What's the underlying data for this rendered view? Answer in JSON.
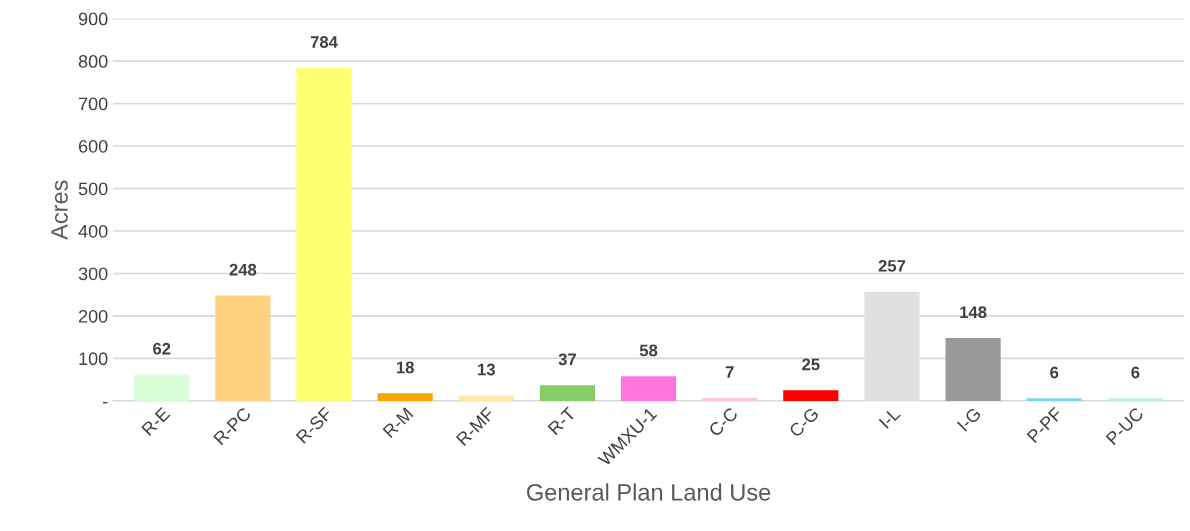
{
  "chart_data": {
    "type": "bar",
    "xlabel": "General Plan Land Use",
    "ylabel": "Acres",
    "categories": [
      "R-E",
      "R-PC",
      "R-SF",
      "R-M",
      "R-MF",
      "R-T",
      "WMXU-1",
      "C-C",
      "C-G",
      "I-L",
      "I-G",
      "P-PF",
      "P-UC"
    ],
    "values": [
      62,
      248,
      784,
      18,
      13,
      37,
      58,
      7,
      25,
      257,
      148,
      6,
      6
    ],
    "colors": [
      "#d9ffd9",
      "#ffd280",
      "#ffff73",
      "#ffa500",
      "#ffe9a8",
      "#88cc66",
      "#ff77dd",
      "#ffc4e4",
      "#ff0000",
      "#e0e0e0",
      "#999999",
      "#7fd4f4",
      "#c0f4e4"
    ],
    "ylim": [
      0,
      900
    ],
    "yticks": [
      {
        "value": 0,
        "label": "-"
      },
      100,
      200,
      300,
      400,
      500,
      600,
      700,
      800,
      900
    ],
    "grid": "y",
    "data_labels": true
  }
}
